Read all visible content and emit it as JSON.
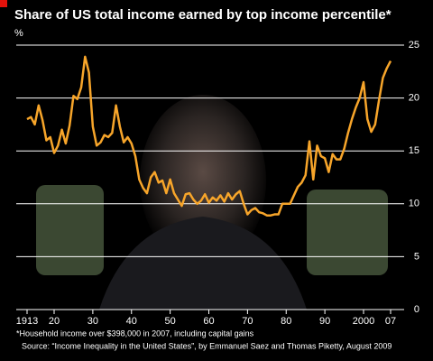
{
  "chart_data": {
    "type": "line",
    "title": "Share of US total income earned by top income percentile*",
    "ylabel": "%",
    "footnote": "*Household income over $398,000 in 2007, including capital gains",
    "source": "Source: “Income Inequality in the United States”, by Emmanuel Saez and Thomas Piketty, August 2009",
    "color": "#f7a52a",
    "grid": true,
    "x": [
      1913,
      1914,
      1915,
      1916,
      1917,
      1918,
      1919,
      1920,
      1921,
      1922,
      1923,
      1924,
      1925,
      1926,
      1927,
      1928,
      1929,
      1930,
      1931,
      1932,
      1933,
      1934,
      1935,
      1936,
      1937,
      1938,
      1939,
      1940,
      1941,
      1942,
      1943,
      1944,
      1945,
      1946,
      1947,
      1948,
      1949,
      1950,
      1951,
      1952,
      1953,
      1954,
      1955,
      1956,
      1957,
      1958,
      1959,
      1960,
      1961,
      1962,
      1963,
      1964,
      1965,
      1966,
      1967,
      1968,
      1969,
      1970,
      1971,
      1972,
      1973,
      1974,
      1975,
      1976,
      1977,
      1978,
      1979,
      1980,
      1981,
      1982,
      1983,
      1984,
      1985,
      1986,
      1987,
      1988,
      1989,
      1990,
      1991,
      1992,
      1993,
      1994,
      1995,
      1996,
      1997,
      1998,
      1999,
      2000,
      2001,
      2002,
      2003,
      2004,
      2005,
      2006,
      2007
    ],
    "values": [
      18.0,
      18.2,
      17.5,
      19.3,
      17.9,
      16.0,
      16.3,
      14.8,
      15.5,
      17.0,
      15.7,
      17.4,
      20.2,
      19.9,
      21.0,
      23.9,
      22.4,
      17.3,
      15.5,
      15.8,
      16.5,
      16.3,
      16.7,
      19.3,
      17.3,
      15.8,
      16.3,
      15.7,
      14.5,
      12.3,
      11.5,
      11.0,
      12.5,
      13.0,
      12.0,
      12.2,
      11.0,
      12.3,
      11.0,
      10.4,
      9.8,
      10.9,
      11.0,
      10.4,
      10.0,
      10.3,
      10.9,
      10.1,
      10.6,
      10.3,
      10.8,
      10.2,
      11.0,
      10.4,
      10.9,
      11.2,
      10.0,
      9.0,
      9.4,
      9.6,
      9.2,
      9.1,
      8.9,
      8.9,
      9.0,
      9.0,
      10.0,
      10.0,
      10.0,
      10.8,
      11.6,
      12.0,
      12.7,
      15.9,
      12.3,
      15.5,
      14.5,
      14.3,
      13.0,
      14.7,
      14.2,
      14.2,
      15.2,
      16.7,
      18.0,
      19.1,
      20.0,
      21.5,
      18.0,
      16.8,
      17.5,
      19.8,
      21.9,
      22.8,
      23.5
    ],
    "xlim": [
      1913,
      2007
    ],
    "xticks": [
      1913,
      {
        "value": 1920,
        "label": "20"
      },
      {
        "value": 1930,
        "label": "30"
      },
      {
        "value": 1940,
        "label": "40"
      },
      {
        "value": 1950,
        "label": "50"
      },
      {
        "value": 1960,
        "label": "60"
      },
      {
        "value": 1970,
        "label": "70"
      },
      {
        "value": 1980,
        "label": "80"
      },
      {
        "value": 1990,
        "label": "90"
      },
      2000,
      {
        "value": 2007,
        "label": "07"
      }
    ],
    "ylim": [
      0,
      25
    ],
    "yticks": [
      0,
      5,
      10,
      15,
      20,
      25
    ]
  }
}
